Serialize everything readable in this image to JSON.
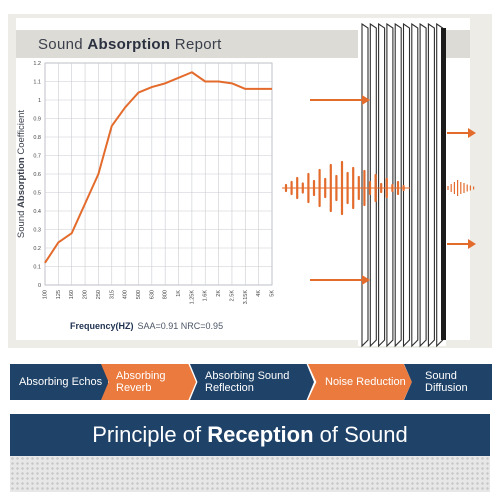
{
  "report": {
    "title_prefix": "Sound ",
    "title_bold": "Absorption",
    "title_suffix": " Report"
  },
  "y_axis_label": {
    "prefix": "Sound ",
    "bold": "Absorption",
    "suffix": " Coefficient"
  },
  "x_axis_label": {
    "main": "Frequency(HZ)",
    "metrics": "SAA=0.91  NRC=0.95"
  },
  "chart_data": {
    "type": "line",
    "categories": [
      "100",
      "125",
      "160",
      "200",
      "250",
      "315",
      "400",
      "500",
      "630",
      "800",
      "1K",
      "1.25K",
      "1.6K",
      "2K",
      "2.5K",
      "3.15K",
      "4K",
      "5K"
    ],
    "series": [
      {
        "values": [
          0.12,
          0.23,
          0.28,
          0.44,
          0.6,
          0.86,
          0.96,
          1.04,
          1.07,
          1.09,
          1.12,
          1.15,
          1.1,
          1.1,
          1.09,
          1.06,
          1.06,
          1.06
        ]
      }
    ],
    "y_ticks": [
      "0",
      "0.1",
      "0.2",
      "0.3",
      "0.4",
      "0.5",
      "0.6",
      "0.7",
      "0.8",
      "0.9",
      "1",
      "1.1",
      "1.2"
    ],
    "ylim": [
      0,
      1.2
    ],
    "grid": true,
    "line_color": "#e36b2c"
  },
  "process_steps": [
    {
      "label": "Absorbing Echos",
      "style": "navy"
    },
    {
      "label": "Absorbing Reverb",
      "style": "orange"
    },
    {
      "label": "Absorbing Sound Reflection",
      "style": "navy"
    },
    {
      "label": "Noise Reduction",
      "style": "orange"
    },
    {
      "label": "Sound Diffusion",
      "style": "navy"
    }
  ],
  "banner": {
    "prefix": "Principle of ",
    "bold": "Reception",
    "suffix": " of Sound"
  },
  "colors": {
    "accent_orange": "#e36b2c",
    "navy": "#1f4268",
    "panel_slat": "#2e2e2e"
  },
  "illustration_icons": [
    "arrow-right-icon",
    "sound-wave-icon",
    "acoustic-panel-icon"
  ]
}
